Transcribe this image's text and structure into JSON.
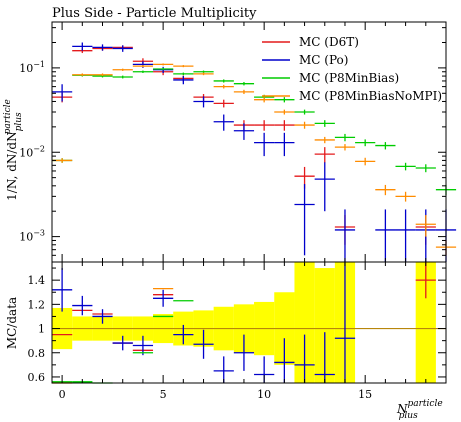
{
  "chart_data": {
    "type": "scatter",
    "title": "Plus Side - Particle Multiplicity",
    "xlabel": {
      "base": "N",
      "sup": "particle",
      "sub": "plus"
    },
    "ylabel": {
      "main": "1/N, dN/dN",
      "sup": "particle",
      "sub": "plus"
    },
    "ratio_ylabel": "MC/data",
    "xlim": [
      -0.5,
      19
    ],
    "ylim": [
      0.0005,
      0.35
    ],
    "ratio_ylim": [
      0.55,
      1.55
    ],
    "yscale": "log",
    "x_ticks": [
      0,
      5,
      10,
      15
    ],
    "y_ticks": [
      {
        "value": 0.1,
        "base": "10",
        "exp": "−1"
      },
      {
        "value": 0.01,
        "base": "10",
        "exp": "−2"
      },
      {
        "value": 0.001,
        "base": "10",
        "exp": "−3"
      }
    ],
    "ratio_ticks": [
      "0.6",
      "0.8",
      "1",
      "1.2",
      "1.4"
    ],
    "legend_position": "top-right",
    "reference_band_color": "#ffff00",
    "reference_line_color": "#b8860b",
    "series": [
      {
        "name": "MC (D6T)",
        "color": "#e41a1c",
        "points": [
          {
            "x": 0,
            "y": 0.045,
            "err": 0.006,
            "r": 0.95
          },
          {
            "x": 1,
            "y": 0.16,
            "err": 0.01,
            "r": 1.15
          },
          {
            "x": 2,
            "y": 0.17,
            "err": 0.01,
            "r": 1.12
          },
          {
            "x": 3,
            "y": 0.175,
            "err": 0.01,
            "r": 0.88
          },
          {
            "x": 4,
            "y": 0.12,
            "err": 0.01,
            "r": 0.82
          },
          {
            "x": 5,
            "y": 0.09,
            "err": 0.008,
            "r": 1.28
          },
          {
            "x": 6,
            "y": 0.075,
            "err": 0.006
          },
          {
            "x": 7,
            "y": 0.045,
            "err": 0.004
          },
          {
            "x": 8,
            "y": 0.038,
            "err": 0.004
          },
          {
            "x": 9,
            "y": 0.021,
            "err": 0.003
          },
          {
            "x": 10,
            "y": 0.021,
            "err": 0.003
          },
          {
            "x": 11,
            "y": 0.021,
            "err": 0.003
          },
          {
            "x": 12,
            "y": 0.0052,
            "err": 0.0015
          },
          {
            "x": 13,
            "y": 0.0095,
            "err": 0.002
          },
          {
            "x": 14,
            "y": 0.0013,
            "err": 0.0005
          },
          {
            "x": 18,
            "y": 0.0013,
            "err": 0.0005,
            "r": 1.4,
            "rerr": 0.15
          }
        ]
      },
      {
        "name": "MC (Po)",
        "color": "#0000cc",
        "points": [
          {
            "x": 0,
            "y": 0.052,
            "err": 0.012,
            "r": 1.32,
            "rerr": 0.18
          },
          {
            "x": 1,
            "y": 0.18,
            "err": 0.02,
            "r": 1.19,
            "rerr": 0.08
          },
          {
            "x": 2,
            "y": 0.175,
            "err": 0.015,
            "r": 1.1,
            "rerr": 0.06
          },
          {
            "x": 3,
            "y": 0.17,
            "err": 0.015,
            "r": 0.88,
            "rerr": 0.06
          },
          {
            "x": 4,
            "y": 0.11,
            "err": 0.01,
            "r": 0.86,
            "rerr": 0.08
          },
          {
            "x": 5,
            "y": 0.095,
            "err": 0.008,
            "r": 1.25,
            "rerr": 0.07
          },
          {
            "x": 6,
            "y": 0.072,
            "err": 0.008,
            "r": 0.95,
            "rerr": 0.08
          },
          {
            "x": 7,
            "y": 0.04,
            "err": 0.006,
            "r": 0.87,
            "rerr": 0.12
          },
          {
            "x": 8,
            "y": 0.023,
            "err": 0.005,
            "r": 0.65,
            "rerr": 0.12
          },
          {
            "x": 9,
            "y": 0.018,
            "err": 0.004,
            "r": 0.8,
            "rerr": 0.15
          },
          {
            "x": 10,
            "y": 0.013,
            "err": 0.004,
            "r": 0.62,
            "rerr": 0.15
          },
          {
            "x": 11,
            "y": 0.013,
            "err": 0.004,
            "r": 0.72,
            "rerr": 0.2
          },
          {
            "x": 12,
            "y": 0.0024,
            "err": 0.0018,
            "r": 0.7,
            "rerr": 0.25
          },
          {
            "x": 13,
            "y": 0.0048,
            "err": 0.0028,
            "r": 0.62,
            "rerr": 0.35
          },
          {
            "x": 14,
            "y": 0.0012,
            "err": 0.0009,
            "r": 0.92,
            "rerr": 0.65
          },
          {
            "x": 16,
            "y": 0.0012,
            "err": 0.0009
          },
          {
            "x": 17,
            "y": 0.0012,
            "err": 0.0009
          },
          {
            "x": 18,
            "y": 0.0012,
            "err": 0.0009
          },
          {
            "x": 19,
            "y": 0.0012,
            "err": 0.0009
          }
        ]
      },
      {
        "name": "MC (P8MinBias)",
        "color": "#00cc00",
        "points": [
          {
            "x": 0,
            "y": 0.008,
            "err": 0.0005,
            "r": 0.56
          },
          {
            "x": 1,
            "y": 0.082,
            "err": 0.003,
            "r": 0.56
          },
          {
            "x": 2,
            "y": 0.08,
            "err": 0.003,
            "r": 0.55
          },
          {
            "x": 3,
            "y": 0.078,
            "err": 0.003,
            "r": 0.52
          },
          {
            "x": 4,
            "y": 0.09,
            "err": 0.003,
            "r": 0.8
          },
          {
            "x": 5,
            "y": 0.097,
            "err": 0.003,
            "r": 1.1
          },
          {
            "x": 6,
            "y": 0.085,
            "err": 0.003,
            "r": 1.23
          },
          {
            "x": 7,
            "y": 0.09,
            "err": 0.003
          },
          {
            "x": 8,
            "y": 0.07,
            "err": 0.003
          },
          {
            "x": 9,
            "y": 0.065,
            "err": 0.003
          },
          {
            "x": 10,
            "y": 0.045,
            "err": 0.003
          },
          {
            "x": 11,
            "y": 0.042,
            "err": 0.003
          },
          {
            "x": 12,
            "y": 0.03,
            "err": 0.002
          },
          {
            "x": 13,
            "y": 0.022,
            "err": 0.002
          },
          {
            "x": 14,
            "y": 0.015,
            "err": 0.0015
          },
          {
            "x": 15,
            "y": 0.013,
            "err": 0.0012
          },
          {
            "x": 16,
            "y": 0.012,
            "err": 0.0012
          },
          {
            "x": 17,
            "y": 0.0068,
            "err": 0.0007
          },
          {
            "x": 18,
            "y": 0.0065,
            "err": 0.0007
          },
          {
            "x": 19,
            "y": 0.0036,
            "err": 0.0005
          }
        ]
      },
      {
        "name": "MC (P8MinBiasNoMPI)",
        "color": "#ff8c00",
        "points": [
          {
            "x": 0,
            "y": 0.008,
            "err": 0.0005,
            "r": 0.55
          },
          {
            "x": 1,
            "y": 0.083,
            "err": 0.003,
            "r": 0.53
          },
          {
            "x": 2,
            "y": 0.083,
            "err": 0.003,
            "r": 0.52
          },
          {
            "x": 3,
            "y": 0.095,
            "err": 0.003
          },
          {
            "x": 4,
            "y": 0.105,
            "err": 0.003
          },
          {
            "x": 5,
            "y": 0.11,
            "err": 0.003,
            "r": 1.33
          },
          {
            "x": 6,
            "y": 0.105,
            "err": 0.003
          },
          {
            "x": 7,
            "y": 0.085,
            "err": 0.003
          },
          {
            "x": 8,
            "y": 0.06,
            "err": 0.003
          },
          {
            "x": 9,
            "y": 0.052,
            "err": 0.003
          },
          {
            "x": 10,
            "y": 0.042,
            "err": 0.003
          },
          {
            "x": 11,
            "y": 0.03,
            "err": 0.002
          },
          {
            "x": 12,
            "y": 0.021,
            "err": 0.002
          },
          {
            "x": 13,
            "y": 0.014,
            "err": 0.0012
          },
          {
            "x": 14,
            "y": 0.0115,
            "err": 0.001
          },
          {
            "x": 15,
            "y": 0.0078,
            "err": 0.0008
          },
          {
            "x": 16,
            "y": 0.0036,
            "err": 0.0005
          },
          {
            "x": 17,
            "y": 0.003,
            "err": 0.0004
          },
          {
            "x": 18,
            "y": 0.0014,
            "err": 0.0004
          },
          {
            "x": 19,
            "y": 0.00075,
            "err": 0.00015
          }
        ]
      }
    ],
    "ratio_band": [
      {
        "x": 0,
        "half": 0.17
      },
      {
        "x": 1,
        "half": 0.1
      },
      {
        "x": 2,
        "half": 0.1
      },
      {
        "x": 3,
        "half": 0.1
      },
      {
        "x": 4,
        "half": 0.1
      },
      {
        "x": 5,
        "half": 0.12
      },
      {
        "x": 6,
        "half": 0.14
      },
      {
        "x": 7,
        "half": 0.15
      },
      {
        "x": 8,
        "half": 0.18
      },
      {
        "x": 9,
        "half": 0.2
      },
      {
        "x": 10,
        "half": 0.22
      },
      {
        "x": 11,
        "half": 0.3
      },
      {
        "x": 12,
        "half": 0.6
      },
      {
        "x": 13,
        "half": 0.5
      },
      {
        "x": 14,
        "half": 0.6
      },
      {
        "x": 18,
        "half": 0.6
      }
    ]
  }
}
